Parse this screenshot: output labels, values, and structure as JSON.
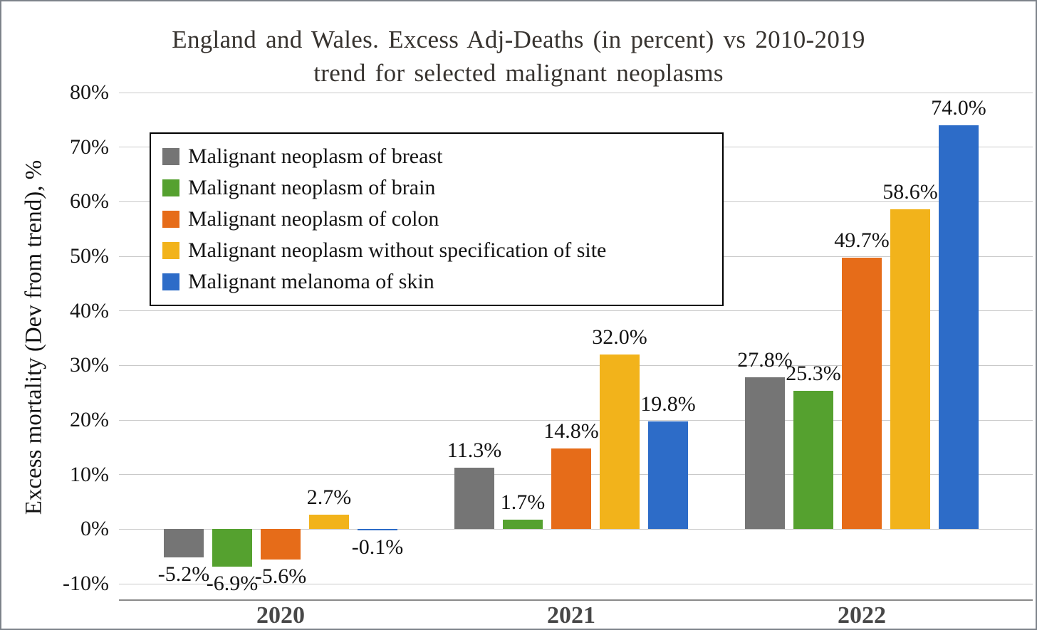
{
  "title": {
    "line1": "England and Wales. Excess Adj-Deaths (in percent) vs 2010-2019",
    "line2": "trend for selected malignant neoplasms"
  },
  "chart_data": {
    "type": "bar",
    "title": "England and Wales. Excess Adj-Deaths (in percent) vs 2010-2019 trend for selected malignant neoplasms",
    "xlabel": "",
    "ylabel": "Excess mortality (Dev from trend), %",
    "categories": [
      "2020",
      "2021",
      "2022"
    ],
    "series": [
      {
        "name": "Malignant neoplasm of breast",
        "color": "#757575",
        "values": [
          -5.2,
          11.3,
          27.8
        ]
      },
      {
        "name": "Malignant neoplasm of brain",
        "color": "#55a12f",
        "values": [
          -6.9,
          1.7,
          25.3
        ]
      },
      {
        "name": "Malignant neoplasm of colon",
        "color": "#e66c19",
        "values": [
          -5.6,
          14.8,
          49.7
        ]
      },
      {
        "name": "Malignant neoplasm without specification of site",
        "color": "#f2b31b",
        "values": [
          2.7,
          32.0,
          58.6
        ]
      },
      {
        "name": "Malignant melanoma of skin",
        "color": "#2d6cc8",
        "values": [
          -0.1,
          19.8,
          74.0
        ]
      }
    ],
    "y_axis": {
      "min": -10,
      "max": 80,
      "step": 10,
      "tick_suffix": "%",
      "ticks": [
        80,
        70,
        60,
        50,
        40,
        30,
        20,
        10,
        0,
        -10
      ],
      "tick_labels": [
        "80%",
        "70%",
        "60%",
        "50%",
        "40%",
        "30%",
        "20%",
        "10%",
        "0%",
        "-10%"
      ]
    },
    "data_labels": true,
    "data_label_texts": [
      [
        "-5.2%",
        "11.3%",
        "27.8%"
      ],
      [
        "-6.9%",
        "1.7%",
        "25.3%"
      ],
      [
        "-5.6%",
        "14.8%",
        "49.7%"
      ],
      [
        "2.7%",
        "32.0%",
        "58.6%"
      ],
      [
        "-0.1%",
        "19.8%",
        "74.0%"
      ]
    ],
    "grid": true,
    "legend_position": "top-left",
    "ylim": [
      -10,
      80
    ]
  }
}
